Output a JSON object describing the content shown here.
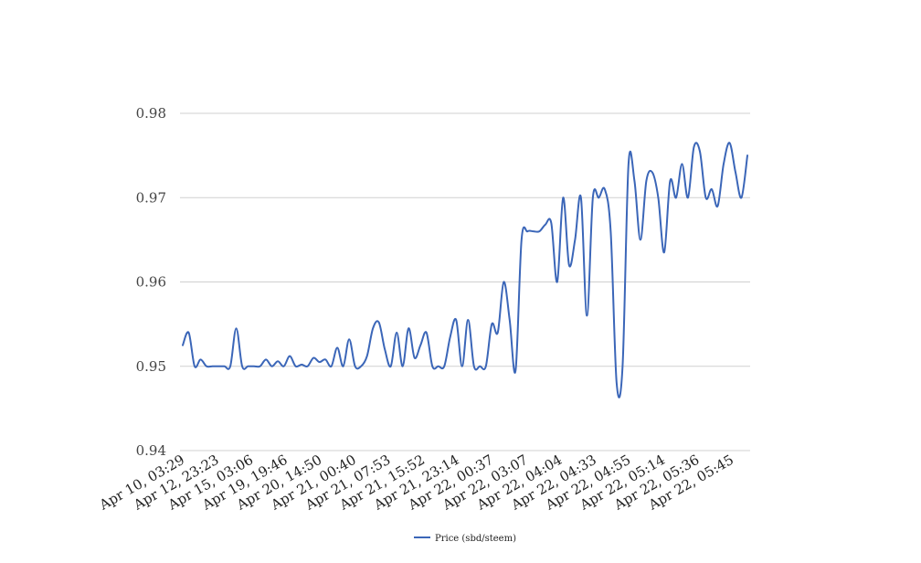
{
  "chart_data": {
    "type": "line",
    "title": "",
    "xlabel": "",
    "ylabel": "",
    "ylim": [
      0.94,
      0.98
    ],
    "grid": true,
    "legend": "bottom-center",
    "colors": {
      "series": "#3b66b8",
      "grid": "#d0d0d0"
    },
    "y_ticks": [
      "0.94",
      "0.95",
      "0.96",
      "0.97",
      "0.98"
    ],
    "x_ticks": [
      "Apr 10, 03:29",
      "Apr 12, 23:23",
      "Apr 15, 03:06",
      "Apr 19, 19:46",
      "Apr 20, 14:50",
      "Apr 21, 00:40",
      "Apr 21, 07:53",
      "Apr 21, 15:52",
      "Apr 21, 23:14",
      "Apr 22, 00:37",
      "Apr 22, 03:07",
      "Apr 22, 04:04",
      "Apr 22, 04:33",
      "Apr 22, 04:55",
      "Apr 22, 05:14",
      "Apr 22, 05:36",
      "Apr 22, 05:45"
    ],
    "series": [
      {
        "name": "Price (sbd/steem)",
        "values": [
          0.9525,
          0.954,
          0.95,
          0.9508,
          0.95,
          0.95,
          0.95,
          0.95,
          0.95,
          0.9545,
          0.95,
          0.95,
          0.95,
          0.95,
          0.9508,
          0.95,
          0.9506,
          0.95,
          0.9512,
          0.95,
          0.9502,
          0.95,
          0.951,
          0.9505,
          0.9508,
          0.95,
          0.9522,
          0.95,
          0.9532,
          0.95,
          0.95,
          0.9512,
          0.9545,
          0.9552,
          0.952,
          0.95,
          0.954,
          0.95,
          0.9545,
          0.951,
          0.9525,
          0.954,
          0.95,
          0.95,
          0.95,
          0.9535,
          0.9555,
          0.95,
          0.9555,
          0.95,
          0.95,
          0.95,
          0.955,
          0.954,
          0.96,
          0.9555,
          0.9495,
          0.965,
          0.966,
          0.966,
          0.966,
          0.9668,
          0.967,
          0.96,
          0.97,
          0.962,
          0.965,
          0.97,
          0.956,
          0.97,
          0.97,
          0.971,
          0.966,
          0.948,
          0.95,
          0.974,
          0.972,
          0.965,
          0.972,
          0.973,
          0.97,
          0.9635,
          0.972,
          0.97,
          0.974,
          0.97,
          0.976,
          0.9755,
          0.97,
          0.971,
          0.969,
          0.974,
          0.9765,
          0.973,
          0.97,
          0.975
        ]
      }
    ]
  }
}
